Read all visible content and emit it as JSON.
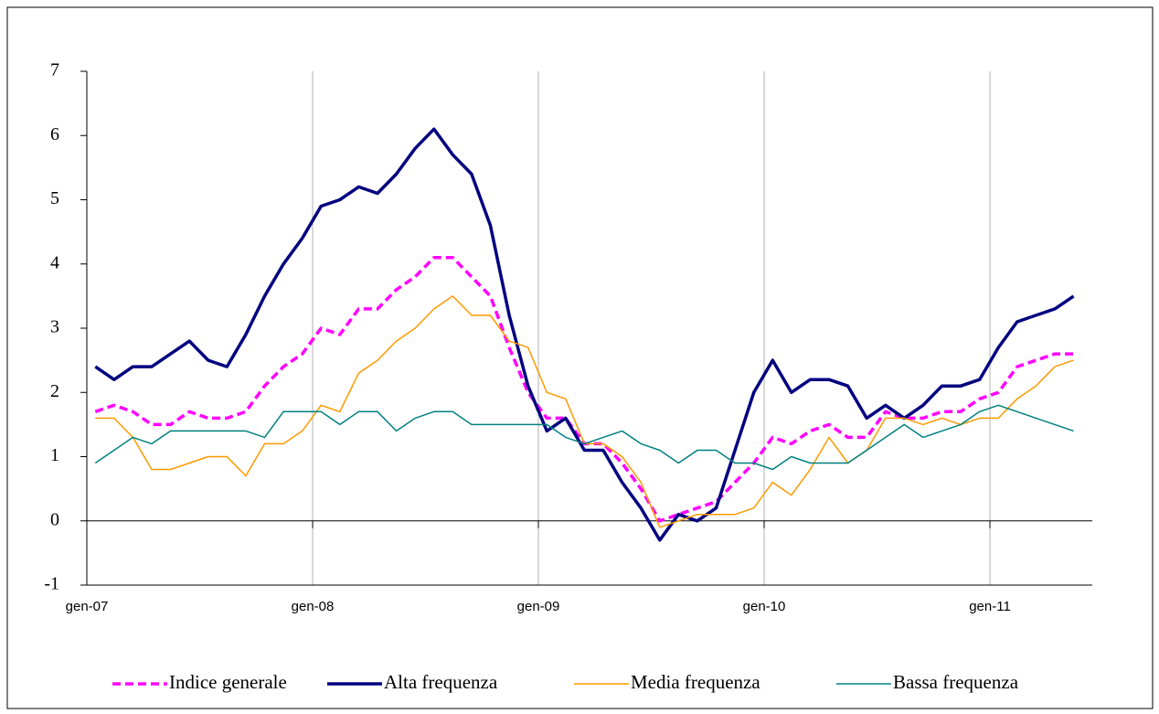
{
  "chart_data": {
    "type": "line",
    "categories": [
      "gen-07",
      null,
      null,
      null,
      null,
      null,
      null,
      null,
      null,
      null,
      null,
      null,
      "gen-08",
      null,
      null,
      null,
      null,
      null,
      null,
      null,
      null,
      null,
      null,
      null,
      "gen-09",
      null,
      null,
      null,
      null,
      null,
      null,
      null,
      null,
      null,
      null,
      null,
      "gen-10",
      null,
      null,
      null,
      null,
      null,
      null,
      null,
      null,
      null,
      null,
      null,
      "gen-11",
      null,
      null,
      null,
      null
    ],
    "series": [
      {
        "name": "Indice generale",
        "color": "#ff00ff",
        "line_style": "dashed",
        "line_width": 3.5,
        "values": [
          1.7,
          1.8,
          1.7,
          1.5,
          1.5,
          1.7,
          1.6,
          1.6,
          1.7,
          2.1,
          2.4,
          2.6,
          3.0,
          2.9,
          3.3,
          3.3,
          3.6,
          3.8,
          4.1,
          4.1,
          3.8,
          3.5,
          2.7,
          2.0,
          1.6,
          1.6,
          1.2,
          1.2,
          0.9,
          0.5,
          0.0,
          0.1,
          0.2,
          0.3,
          0.6,
          0.9,
          1.3,
          1.2,
          1.4,
          1.5,
          1.3,
          1.3,
          1.7,
          1.6,
          1.6,
          1.7,
          1.7,
          1.9,
          2.0,
          2.4,
          2.5,
          2.6,
          2.6
        ]
      },
      {
        "name": "Alta frequenza",
        "color": "#000080",
        "line_style": "solid",
        "line_width": 3.5,
        "values": [
          2.4,
          2.2,
          2.4,
          2.4,
          2.6,
          2.8,
          2.5,
          2.4,
          2.9,
          3.5,
          4.0,
          4.4,
          4.9,
          5.0,
          5.2,
          5.1,
          5.4,
          5.8,
          6.1,
          5.7,
          5.4,
          4.6,
          3.2,
          2.1,
          1.4,
          1.6,
          1.1,
          1.1,
          0.6,
          0.2,
          -0.3,
          0.1,
          0.0,
          0.2,
          1.1,
          2.0,
          2.5,
          2.0,
          2.2,
          2.2,
          2.1,
          1.6,
          1.8,
          1.6,
          1.8,
          2.1,
          2.1,
          2.2,
          2.7,
          3.1,
          3.2,
          3.3,
          3.5
        ]
      },
      {
        "name": "Media frequenza",
        "color": "#ff9900",
        "line_style": "solid",
        "line_width": 1.5,
        "values": [
          1.6,
          1.6,
          1.3,
          0.8,
          0.8,
          0.9,
          1.0,
          1.0,
          0.7,
          1.2,
          1.2,
          1.4,
          1.8,
          1.7,
          2.3,
          2.5,
          2.8,
          3.0,
          3.3,
          3.5,
          3.2,
          3.2,
          2.8,
          2.7,
          2.0,
          1.9,
          1.2,
          1.2,
          1.0,
          0.6,
          -0.1,
          0.0,
          0.1,
          0.1,
          0.1,
          0.2,
          0.6,
          0.4,
          0.8,
          1.3,
          0.9,
          1.1,
          1.6,
          1.6,
          1.5,
          1.6,
          1.5,
          1.6,
          1.6,
          1.9,
          2.1,
          2.4,
          2.5
        ]
      },
      {
        "name": "Bassa frequenza",
        "color": "#008080",
        "line_style": "solid",
        "line_width": 1.5,
        "values": [
          0.9,
          1.1,
          1.3,
          1.2,
          1.4,
          1.4,
          1.4,
          1.4,
          1.4,
          1.3,
          1.7,
          1.7,
          1.7,
          1.5,
          1.7,
          1.7,
          1.4,
          1.6,
          1.7,
          1.7,
          1.5,
          1.5,
          1.5,
          1.5,
          1.5,
          1.3,
          1.2,
          1.3,
          1.4,
          1.2,
          1.1,
          0.9,
          1.1,
          1.1,
          0.9,
          0.9,
          0.8,
          1.0,
          0.9,
          0.9,
          0.9,
          1.1,
          1.3,
          1.5,
          1.3,
          1.4,
          1.5,
          1.7,
          1.8,
          1.7,
          1.6,
          1.5,
          1.4
        ]
      }
    ],
    "ylim": [
      -1,
      7
    ],
    "yticks": [
      -1,
      0,
      1,
      2,
      3,
      4,
      5,
      6,
      7
    ],
    "grid": true,
    "legend": "bottom"
  }
}
